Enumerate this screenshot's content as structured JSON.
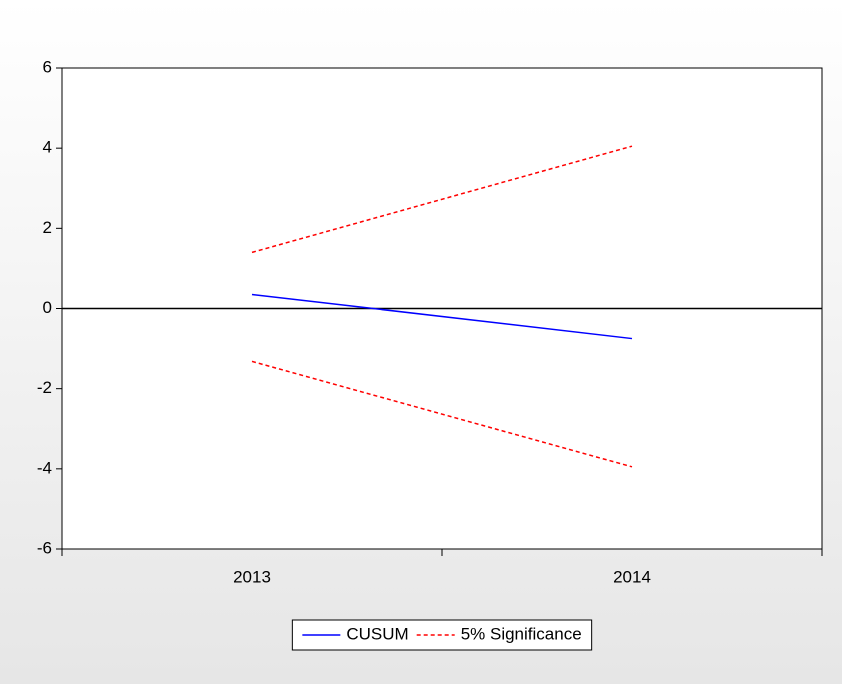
{
  "chart_data": {
    "type": "line",
    "categories": [
      "2013",
      "2014"
    ],
    "series": [
      {
        "name": "CUSUM",
        "color": "#0000ff",
        "style": "solid",
        "values": [
          0.35,
          -0.75
        ]
      },
      {
        "name": "5% Significance",
        "color": "#ff0000",
        "style": "dashed",
        "values": [
          1.4,
          4.05
        ],
        "lower": [
          -1.32,
          -3.95
        ]
      }
    ],
    "ylim": [
      -6,
      6
    ],
    "yticks": [
      -6,
      -4,
      -2,
      0,
      2,
      4,
      6
    ],
    "hlines": [
      0
    ],
    "grid": false,
    "legend": "bottom"
  }
}
